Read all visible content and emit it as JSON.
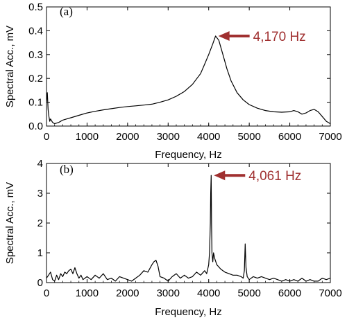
{
  "chart_data": [
    {
      "type": "line",
      "panel_label": "(a)",
      "xlabel": "Frequency, Hz",
      "ylabel": "Spectral Acc., mV",
      "xlim": [
        0,
        7000
      ],
      "ylim": [
        0,
        0.5
      ],
      "x_ticks": [
        "0",
        "1000",
        "2000",
        "3000",
        "4000",
        "5000",
        "6000",
        "7000"
      ],
      "y_ticks": [
        "0.0",
        "0.1",
        "0.2",
        "0.3",
        "0.4",
        "0.5"
      ],
      "grid": false,
      "series": [
        {
          "x": [
            0,
            20,
            40,
            60,
            80,
            100,
            150,
            200,
            300,
            400,
            500,
            600,
            800,
            1000,
            1200,
            1400,
            1600,
            1800,
            2000,
            2200,
            2400,
            2600,
            2800,
            3000,
            3200,
            3400,
            3600,
            3800,
            3900,
            4000,
            4100,
            4170,
            4250,
            4350,
            4450,
            4550,
            4700,
            4850,
            5000,
            5200,
            5400,
            5600,
            5800,
            6000,
            6100,
            6200,
            6300,
            6400,
            6500,
            6600,
            6700,
            6800,
            6900,
            7000
          ],
          "y": [
            0.1,
            0.14,
            0.07,
            0.04,
            0.02,
            0.03,
            0.015,
            0.01,
            0.015,
            0.025,
            0.03,
            0.035,
            0.045,
            0.055,
            0.062,
            0.068,
            0.073,
            0.078,
            0.082,
            0.085,
            0.088,
            0.092,
            0.1,
            0.11,
            0.125,
            0.145,
            0.175,
            0.22,
            0.26,
            0.3,
            0.345,
            0.378,
            0.36,
            0.3,
            0.24,
            0.19,
            0.14,
            0.11,
            0.09,
            0.075,
            0.065,
            0.06,
            0.058,
            0.06,
            0.065,
            0.06,
            0.05,
            0.055,
            0.065,
            0.07,
            0.06,
            0.04,
            0.02,
            0.01
          ]
        }
      ],
      "annotation": {
        "text": "4,170 Hz",
        "x": 4170,
        "y": 0.378,
        "color": "#a03030"
      }
    },
    {
      "type": "line",
      "panel_label": "(b)",
      "xlabel": "Frequency, Hz",
      "ylabel": "Spectral Acc., mV",
      "xlim": [
        0,
        7000
      ],
      "ylim": [
        0,
        4
      ],
      "x_ticks": [
        "0",
        "1000",
        "2000",
        "3000",
        "4000",
        "5000",
        "6000",
        "7000"
      ],
      "y_ticks": [
        "0",
        "1",
        "2",
        "3",
        "4"
      ],
      "grid": false,
      "series": [
        {
          "x": [
            0,
            50,
            100,
            150,
            200,
            250,
            300,
            350,
            400,
            450,
            500,
            550,
            600,
            650,
            700,
            750,
            800,
            850,
            900,
            1000,
            1100,
            1200,
            1300,
            1400,
            1500,
            1600,
            1700,
            1800,
            1900,
            2000,
            2100,
            2200,
            2300,
            2400,
            2500,
            2600,
            2650,
            2700,
            2750,
            2800,
            2900,
            3000,
            3100,
            3200,
            3300,
            3400,
            3500,
            3600,
            3700,
            3800,
            3900,
            3950,
            4000,
            4020,
            4040,
            4050,
            4061,
            4070,
            4080,
            4100,
            4120,
            4150,
            4200,
            4300,
            4400,
            4500,
            4600,
            4700,
            4800,
            4850,
            4880,
            4900,
            4920,
            4950,
            5000,
            5100,
            5200,
            5300,
            5400,
            5500,
            5600,
            5700,
            5800,
            5900,
            6000,
            6100,
            6200,
            6300,
            6400,
            6500,
            6600,
            6700,
            6800,
            6900,
            7000
          ],
          "y": [
            0.15,
            0.25,
            0.35,
            0.1,
            0.05,
            0.25,
            0.1,
            0.3,
            0.2,
            0.35,
            0.3,
            0.4,
            0.45,
            0.3,
            0.5,
            0.3,
            0.15,
            0.25,
            0.1,
            0.2,
            0.1,
            0.25,
            0.15,
            0.3,
            0.1,
            0.15,
            0.05,
            0.2,
            0.15,
            0.1,
            0.05,
            0.15,
            0.25,
            0.4,
            0.35,
            0.6,
            0.7,
            0.75,
            0.55,
            0.2,
            0.15,
            0.05,
            0.2,
            0.3,
            0.15,
            0.25,
            0.15,
            0.2,
            0.35,
            0.25,
            0.4,
            0.3,
            0.6,
            1.0,
            2.0,
            3.0,
            3.6,
            2.0,
            1.0,
            0.7,
            1.0,
            0.8,
            0.6,
            0.45,
            0.35,
            0.3,
            0.25,
            0.25,
            0.2,
            0.15,
            0.4,
            1.3,
            0.5,
            0.2,
            0.1,
            0.2,
            0.15,
            0.2,
            0.15,
            0.1,
            0.15,
            0.1,
            0.05,
            0.1,
            0.05,
            0.1,
            0.05,
            0.15,
            0.05,
            0.1,
            0.05,
            0.05,
            0.15,
            0.1,
            0.15
          ]
        }
      ],
      "annotation": {
        "text": "4,061 Hz",
        "x": 4061,
        "y": 3.6,
        "color": "#a03030"
      }
    }
  ]
}
